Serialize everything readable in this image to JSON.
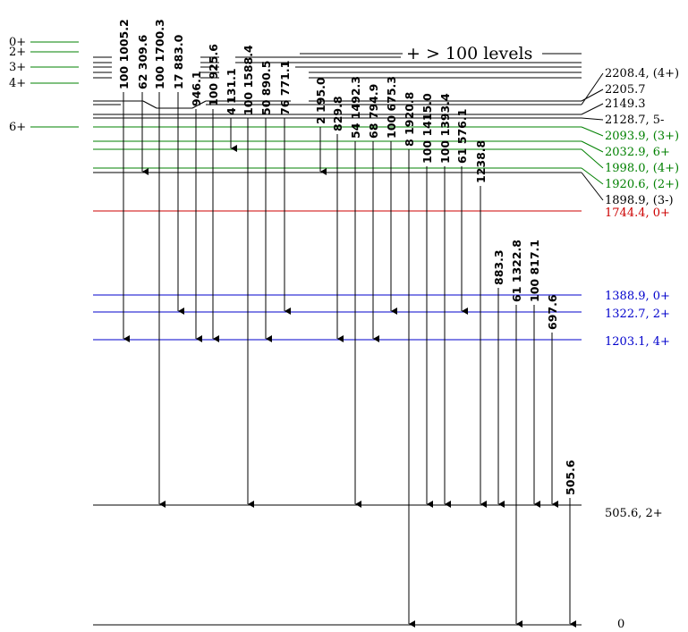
{
  "colors": {
    "black": "#000000",
    "green": "#008000",
    "blue": "#0000cc",
    "red": "#cc0000"
  },
  "top_note": "+ > 100 levels",
  "left_stubs": [
    {
      "label": "0+"
    },
    {
      "label": "2+"
    },
    {
      "label": "3+"
    },
    {
      "label": "4+"
    },
    {
      "label": "6+"
    }
  ],
  "levels": [
    {
      "label": "2208.4, (4+)",
      "color": "black"
    },
    {
      "label": "2205.7",
      "color": "black"
    },
    {
      "label": "2149.3",
      "color": "black"
    },
    {
      "label": "2128.7, 5-",
      "color": "black"
    },
    {
      "label": "2093.9, (3+)",
      "color": "green"
    },
    {
      "label": "2032.9, 6+",
      "color": "green"
    },
    {
      "label": "1998.0, (4+)",
      "color": "green"
    },
    {
      "label": "1920.6, (2+)",
      "color": "green"
    },
    {
      "label": "1898.9, (3-)",
      "color": "black"
    },
    {
      "label": "1744.4, 0+",
      "color": "red"
    },
    {
      "label": "1388.9, 0+",
      "color": "blue"
    },
    {
      "label": "1322.7, 2+",
      "color": "blue"
    },
    {
      "label": "1203.1, 4+",
      "color": "blue"
    },
    {
      "label": "505.6, 2+",
      "color": "black"
    },
    {
      "label": "0",
      "color": "black"
    }
  ],
  "gammas": [
    {
      "label": "100  1005.2"
    },
    {
      "label": "62  309.6"
    },
    {
      "label": "100  1700.3"
    },
    {
      "label": "17  883.0"
    },
    {
      "label": "946.1"
    },
    {
      "label": "100  925.6"
    },
    {
      "label": "4  131.1"
    },
    {
      "label": "100  1588.4"
    },
    {
      "label": "50  890.5"
    },
    {
      "label": "76  771.1"
    },
    {
      "label": "2  195.0"
    },
    {
      "label": "829.8"
    },
    {
      "label": "54  1492.3"
    },
    {
      "label": "68  794.9"
    },
    {
      "label": "100  675.3"
    },
    {
      "label": "8  1920.8"
    },
    {
      "label": "100  1415.0"
    },
    {
      "label": "100  1393.4"
    },
    {
      "label": "61  576.1"
    },
    {
      "label": "1238.8"
    },
    {
      "label": "883.3"
    },
    {
      "label": "61  1322.8"
    },
    {
      "label": "100  817.1"
    },
    {
      "label": "697.6"
    },
    {
      "label": "505.6"
    }
  ]
}
